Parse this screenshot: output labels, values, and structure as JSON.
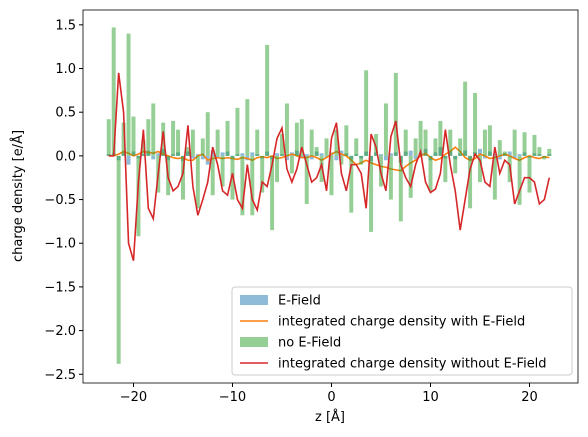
{
  "chart_data": {
    "type": "bar-line",
    "xlabel": "z [Å]",
    "ylabel": "charge density [e/Å]",
    "xlim": [
      -25.1,
      24.9
    ],
    "ylim": [
      -2.6,
      1.67
    ],
    "xticks": [
      {
        "value": -20,
        "label": "−20"
      },
      {
        "value": -10,
        "label": "−10"
      },
      0,
      10,
      20
    ],
    "yticks": [
      1.5,
      {
        "value": 1.0,
        "label": "1.0"
      },
      0.5,
      {
        "value": 0.0,
        "label": "0.0"
      },
      {
        "value": -0.5,
        "label": "−0.5"
      },
      {
        "value": -1.0,
        "label": "−1.0"
      },
      {
        "value": -1.5,
        "label": "−1.5"
      },
      {
        "value": -2.0,
        "label": "−2.0"
      },
      {
        "value": -2.5,
        "label": "−2.5"
      }
    ],
    "legend": "lower right",
    "x": [
      -22.5,
      -22,
      -21.5,
      -21,
      -20.5,
      -20,
      -19.5,
      -19,
      -18.5,
      -18,
      -17.5,
      -17,
      -16.5,
      -16,
      -15.5,
      -15,
      -14.5,
      -14,
      -13.5,
      -13,
      -12.5,
      -12,
      -11.5,
      -11,
      -10.5,
      -10,
      -9.5,
      -9,
      -8.5,
      -8,
      -7.5,
      -7,
      -6.5,
      -6,
      -5.5,
      -5,
      -4.5,
      -4,
      -3.5,
      -3,
      -2.5,
      -2,
      -1.5,
      -1,
      -0.5,
      0,
      0.5,
      1,
      1.5,
      2,
      2.5,
      3,
      3.5,
      4,
      4.5,
      5,
      5.5,
      6,
      6.5,
      7,
      7.5,
      8,
      8.5,
      9,
      9.5,
      10,
      10.5,
      11,
      11.5,
      12,
      12.5,
      13,
      13.5,
      14,
      14.5,
      15,
      15.5,
      16,
      16.5,
      17,
      17.5,
      18,
      18.5,
      19,
      19.5,
      20,
      20.5,
      21,
      21.5,
      22
    ],
    "series": [
      {
        "name": "E-Field",
        "kind": "bar",
        "color": "#1f77b4",
        "values": [
          0.02,
          0.03,
          -0.05,
          0.04,
          -0.1,
          0.05,
          -0.03,
          0.02,
          0.06,
          -0.04,
          0.03,
          0.08,
          -0.05,
          0.02,
          0.04,
          -0.06,
          0.05,
          -0.03,
          0.02,
          -0.04,
          -0.1,
          0.06,
          -0.03,
          0.04,
          0.05,
          -0.04,
          0.02,
          0.03,
          -0.05,
          0.04,
          0.02,
          -0.03,
          0.05,
          -0.04,
          0.03,
          0.02,
          -0.05,
          0.04,
          0.06,
          -0.03,
          0.02,
          -0.04,
          0.05,
          0.03,
          -0.02,
          0.04,
          -0.05,
          0.06,
          0.03,
          -0.04,
          0.02,
          -0.03,
          0.05,
          -0.06,
          0.04,
          0.02,
          -0.05,
          0.03,
          0.04,
          -0.08,
          0.05,
          0.06,
          -0.04,
          0.03,
          0.08,
          -0.05,
          0.04,
          0.1,
          -0.03,
          0.05,
          -0.04,
          0.03,
          0.06,
          -0.05,
          0.04,
          0.08,
          -0.03,
          0.05,
          0.02,
          -0.04,
          0.03,
          0.05,
          -0.03,
          0.02,
          0.04,
          -0.02,
          0.03,
          0.02,
          -0.01,
          0.02
        ]
      },
      {
        "name": "integrated charge density with E-Field",
        "kind": "line",
        "color": "#ff7f0e",
        "values": [
          0.0,
          0.0,
          0.02,
          0.05,
          0.03,
          0.0,
          0.02,
          0.05,
          0.04,
          0.03,
          0.05,
          0.02,
          0.0,
          -0.02,
          -0.03,
          -0.02,
          -0.05,
          -0.05,
          0.0,
          0.02,
          -0.05,
          -0.03,
          -0.02,
          -0.03,
          -0.02,
          -0.03,
          -0.04,
          -0.02,
          -0.03,
          -0.05,
          -0.02,
          -0.01,
          -0.02,
          0.0,
          -0.03,
          -0.02,
          0.0,
          0.02,
          0.0,
          -0.02,
          -0.02,
          0.0,
          -0.02,
          -0.05,
          -0.02,
          0.02,
          0.05,
          0.02,
          0.0,
          -0.05,
          -0.1,
          -0.08,
          -0.05,
          -0.08,
          -0.1,
          -0.12,
          -0.13,
          -0.15,
          -0.16,
          -0.17,
          -0.12,
          -0.08,
          -0.05,
          0.0,
          0.03,
          -0.02,
          -0.05,
          -0.03,
          0.02,
          0.05,
          0.1,
          0.05,
          -0.02,
          -0.05,
          -0.03,
          0.02,
          0.0,
          -0.03,
          -0.02,
          0.0,
          0.02,
          0.0,
          -0.03,
          -0.05,
          -0.02,
          0.0,
          -0.02,
          -0.03,
          -0.01,
          -0.02
        ]
      },
      {
        "name": "no E-Field",
        "kind": "bar",
        "color": "#2ca02c",
        "values": [
          0.42,
          1.47,
          -2.38,
          0.38,
          1.4,
          0.45,
          -0.92,
          0.18,
          0.42,
          0.6,
          -0.42,
          0.38,
          -0.45,
          0.4,
          0.3,
          -0.5,
          0.1,
          0.3,
          -0.6,
          0.2,
          0.5,
          -0.45,
          0.3,
          -0.35,
          0.4,
          -0.5,
          0.55,
          -0.68,
          0.65,
          -0.68,
          0.3,
          -0.42,
          1.27,
          -0.85,
          -0.3,
          0.25,
          0.6,
          -0.2,
          0.38,
          0.42,
          -0.55,
          0.3,
          0.1,
          -0.3,
          0.2,
          -0.45,
          0.3,
          -0.1,
          0.35,
          -0.65,
          0.2,
          -0.1,
          0.98,
          -0.87,
          0.25,
          -0.35,
          0.6,
          -0.5,
          0.95,
          -0.75,
          0.3,
          -0.48,
          0.2,
          0.4,
          0.3,
          -0.4,
          0.2,
          0.4,
          -0.3,
          0.3,
          -0.2,
          0.2,
          0.85,
          -0.6,
          0.72,
          -0.3,
          0.3,
          0.35,
          -0.5,
          0.18,
          0.05,
          -0.3,
          0.3,
          -0.56,
          0.27,
          -0.42,
          0.24,
          0.1,
          -0.04,
          0.08
        ]
      },
      {
        "name": "integrated charge density without E-Field",
        "kind": "line",
        "color": "#d62728",
        "values": [
          0,
          0,
          0.95,
          0.5,
          -1.0,
          -1.2,
          -0.3,
          0.3,
          -0.6,
          -0.72,
          -0.2,
          0.28,
          -0.25,
          -0.4,
          -0.35,
          -0.2,
          0.35,
          -0.35,
          -0.68,
          -0.5,
          -0.3,
          0.1,
          -0.1,
          -0.4,
          -0.45,
          -0.2,
          -0.5,
          -0.6,
          -0.1,
          -0.5,
          -0.62,
          -0.3,
          -0.35,
          -0.1,
          0.2,
          0.32,
          -0.15,
          -0.3,
          -0.15,
          0.1,
          -0.1,
          -0.3,
          -0.25,
          -0.1,
          -0.4,
          0.2,
          0.38,
          -0.2,
          -0.4,
          -0.1,
          -0.1,
          -0.2,
          -0.6,
          0.25,
          0.1,
          -0.2,
          -0.4,
          0.22,
          0.4,
          -0.1,
          -0.25,
          -0.35,
          -0.1,
          0.05,
          -0.3,
          -0.42,
          -0.38,
          -0.2,
          0.3,
          -0.1,
          -0.4,
          -0.85,
          -0.5,
          -0.15,
          0.02,
          -0.05,
          -0.3,
          -0.35,
          0.1,
          -0.2,
          -0.05,
          -0.1,
          -0.55,
          -0.4,
          -0.25,
          -0.25,
          -0.3,
          -0.55,
          -0.5,
          -0.25
        ]
      }
    ]
  }
}
